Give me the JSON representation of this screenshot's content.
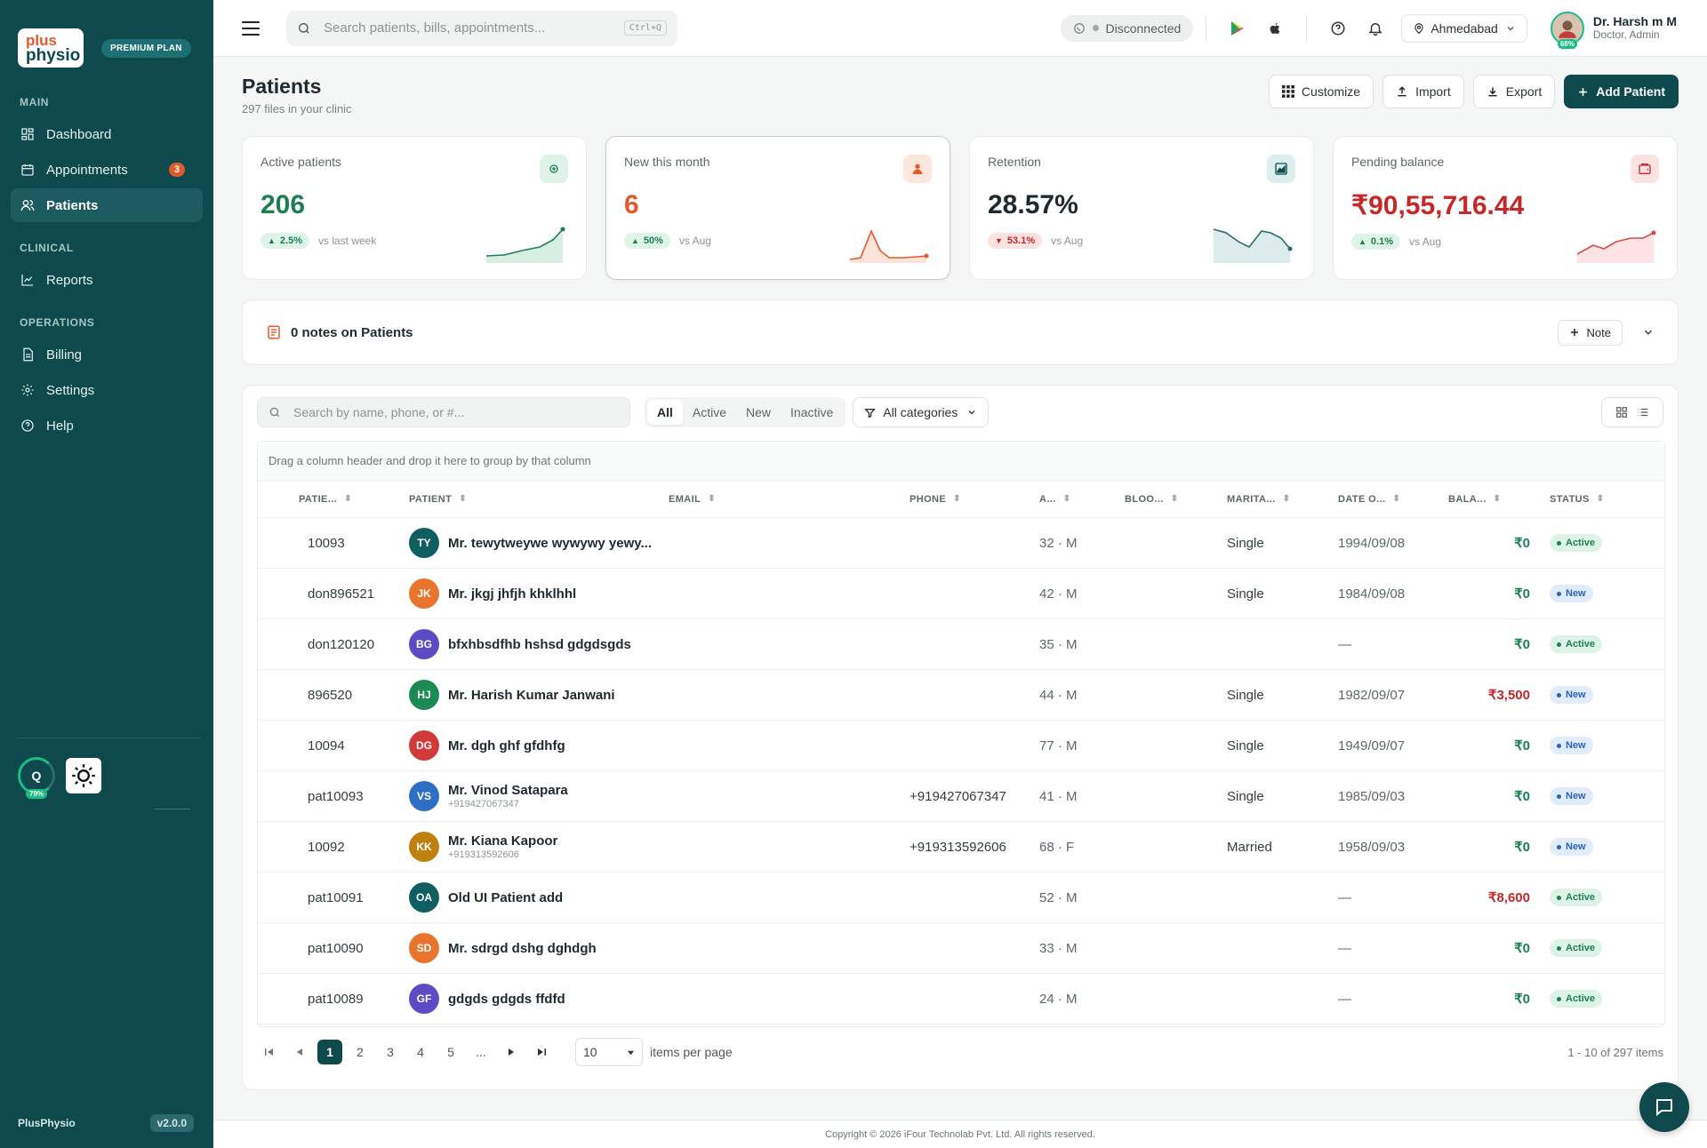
{
  "brand": {
    "logo_line1": "plus",
    "logo_line2": "physio",
    "plan": "PREMIUM PLAN",
    "footer_name": "PlusPhysio",
    "version": "v2.0.0"
  },
  "sidebar": {
    "sections": [
      {
        "title": "MAIN",
        "items": [
          {
            "label": "Dashboard",
            "icon": "dashboard-icon"
          },
          {
            "label": "Appointments",
            "icon": "calendar-icon",
            "badge": "3"
          },
          {
            "label": "Patients",
            "icon": "users-icon",
            "active": true
          }
        ]
      },
      {
        "title": "CLINICAL",
        "items": [
          {
            "label": "Reports",
            "icon": "chart-icon"
          }
        ]
      },
      {
        "title": "OPERATIONS",
        "items": [
          {
            "label": "Billing",
            "icon": "document-icon"
          },
          {
            "label": "Settings",
            "icon": "gear-icon"
          },
          {
            "label": "Help",
            "icon": "help-icon"
          }
        ]
      }
    ],
    "quota_letter": "Q",
    "quota_pct": "79%"
  },
  "topbar": {
    "search_placeholder": "Search patients, bills, appointments...",
    "search_shortcut": "Ctrl+Q",
    "whatsapp_status": "Disconnected",
    "location": "Ahmedabad",
    "user_name": "Dr. Harsh m M",
    "user_role": "Doctor, Admin",
    "avatar_pct": "68%"
  },
  "page": {
    "title": "Patients",
    "subtitle": "297 files in your clinic",
    "actions": {
      "customize": "Customize",
      "import": "Import",
      "export": "Export",
      "add": "Add Patient"
    }
  },
  "stats": [
    {
      "label": "Active patients",
      "value": "206",
      "delta": "2.5%",
      "direction": "up",
      "compare": "vs last week",
      "color": "#1c7f52",
      "icon": "stethoscope-icon"
    },
    {
      "label": "New this month",
      "value": "6",
      "delta": "50%",
      "direction": "up",
      "compare": "vs Aug",
      "color": "#e25a2b",
      "icon": "person-icon"
    },
    {
      "label": "Retention",
      "value": "28.57%",
      "delta": "53.1%",
      "direction": "down",
      "compare": "vs Aug",
      "color": "#1f2a2e",
      "icon": "area-chart-icon"
    },
    {
      "label": "Pending balance",
      "value": "₹90,55,716.44",
      "delta": "0.1%",
      "direction": "up",
      "compare": "vs Aug",
      "color": "#c62828",
      "icon": "wallet-icon"
    }
  ],
  "notes": {
    "title": "0 notes on Patients",
    "button": "Note"
  },
  "table": {
    "search_placeholder": "Search by name, phone, or #...",
    "segments": [
      "All",
      "Active",
      "New",
      "Inactive"
    ],
    "selected_segment": "All",
    "category_filter": "All categories",
    "group_hint": "Drag a column header and drop it here to group by that column",
    "columns": [
      "PATIE...",
      "PATIENT",
      "EMAIL",
      "PHONE",
      "A...",
      "BLOO...",
      "MARITA...",
      "DATE O...",
      "BALA...",
      "STATUS"
    ],
    "rows": [
      {
        "id": "10093",
        "initials": "TY",
        "avatar": "#0e5e62",
        "name": "Mr. tewytweywe wywywy yewy...",
        "sub": "",
        "email": "",
        "phone": "",
        "age": "32 · M",
        "blood": "",
        "marital": "Single",
        "dob": "1994/09/08",
        "balance": "₹0",
        "status": "Active"
      },
      {
        "id": "don896521",
        "initials": "JK",
        "avatar": "#e8742e",
        "name": "Mr. jkgj jhfjh khklhhl",
        "sub": "",
        "email": "",
        "phone": "",
        "age": "42 · M",
        "blood": "",
        "marital": "Single",
        "dob": "1984/09/08",
        "balance": "₹0",
        "status": "New"
      },
      {
        "id": "don120120",
        "initials": "BG",
        "avatar": "#5b4bc4",
        "name": "bfxhbsdfhb hshsd gdgdsgds",
        "sub": "",
        "email": "",
        "phone": "",
        "age": "35 · M",
        "blood": "",
        "marital": "",
        "dob": "—",
        "balance": "₹0",
        "status": "Active"
      },
      {
        "id": "896520",
        "initials": "HJ",
        "avatar": "#1c8a55",
        "name": "Mr. Harish Kumar Janwani",
        "sub": "",
        "email": "",
        "phone": "",
        "age": "44 · M",
        "blood": "",
        "marital": "Single",
        "dob": "1982/09/07",
        "balance": "₹3,500",
        "status": "New"
      },
      {
        "id": "10094",
        "initials": "DG",
        "avatar": "#d23a3a",
        "name": "Mr. dgh ghf gfdhfg",
        "sub": "",
        "email": "",
        "phone": "",
        "age": "77 · M",
        "blood": "",
        "marital": "Single",
        "dob": "1949/09/07",
        "balance": "₹0",
        "status": "New"
      },
      {
        "id": "pat10093",
        "initials": "VS",
        "avatar": "#2e6fc6",
        "name": "Mr. Vinod Satapara",
        "sub": "+919427067347",
        "email": "",
        "phone": "+919427067347",
        "age": "41 · M",
        "blood": "",
        "marital": "Single",
        "dob": "1985/09/03",
        "balance": "₹0",
        "status": "New"
      },
      {
        "id": "10092",
        "initials": "KK",
        "avatar": "#c08010",
        "name": "Mr. Kiana Kapoor",
        "sub": "+919313592606",
        "email": "",
        "phone": "+919313592606",
        "age": "68 · F",
        "blood": "",
        "marital": "Married",
        "dob": "1958/09/03",
        "balance": "₹0",
        "status": "New"
      },
      {
        "id": "pat10091",
        "initials": "OA",
        "avatar": "#0e5e62",
        "name": "Old UI Patient add",
        "sub": "",
        "email": "",
        "phone": "",
        "age": "52 · M",
        "blood": "",
        "marital": "",
        "dob": "—",
        "balance": "₹8,600",
        "status": "Active"
      },
      {
        "id": "pat10090",
        "initials": "SD",
        "avatar": "#e8742e",
        "name": "Mr. sdrgd dshg dghdgh",
        "sub": "",
        "email": "",
        "phone": "",
        "age": "33 · M",
        "blood": "",
        "marital": "",
        "dob": "—",
        "balance": "₹0",
        "status": "Active"
      },
      {
        "id": "pat10089",
        "initials": "GF",
        "avatar": "#5b4bc4",
        "name": "gdgds gdgds ffdfd",
        "sub": "",
        "email": "",
        "phone": "",
        "age": "24 · M",
        "blood": "",
        "marital": "",
        "dob": "—",
        "balance": "₹0",
        "status": "Active"
      }
    ],
    "pagination": {
      "pages": [
        "1",
        "2",
        "3",
        "4",
        "5",
        "..."
      ],
      "current": "1",
      "per_page": "10",
      "per_page_label": "items per page",
      "info": "1 - 10 of 297 items"
    }
  },
  "footer": {
    "copyright": "Copyright © 2026 iFour Technolab Pvt. Ltd. All rights reserved."
  }
}
